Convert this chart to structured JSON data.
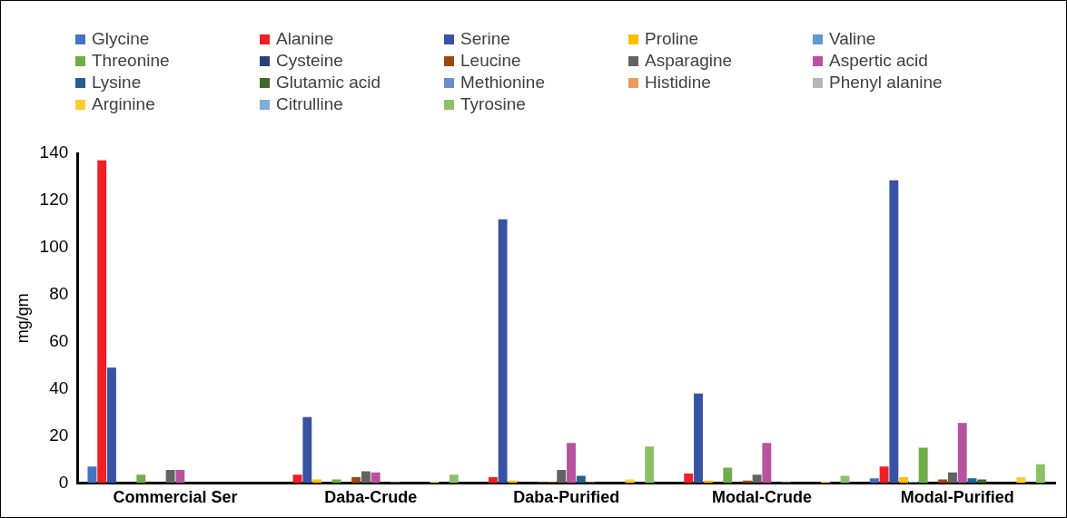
{
  "chart_data": {
    "type": "bar",
    "ylabel": "mg/gm",
    "categories": [
      "Commercial Ser",
      "Daba-Crude",
      "Daba-Purified",
      "Modal-Crude",
      "Modal-Purified"
    ],
    "ylim": [
      0,
      140
    ],
    "yticks": [
      0,
      20,
      40,
      60,
      80,
      100,
      120,
      140
    ],
    "grid": false,
    "legend": "top",
    "series": [
      {
        "name": "Glycine",
        "color": "#4472c4",
        "values": [
          7,
          0,
          0,
          0,
          2
        ]
      },
      {
        "name": "Alanine",
        "color": "#ee2024",
        "values": [
          137,
          3.5,
          2.5,
          4,
          7
        ]
      },
      {
        "name": "Serine",
        "color": "#3953a4",
        "values": [
          49,
          28,
          112,
          38,
          128.5
        ]
      },
      {
        "name": "Proline",
        "color": "#ffc000",
        "values": [
          0,
          1.5,
          1,
          1,
          2.5
        ]
      },
      {
        "name": "Valine",
        "color": "#5b9bd5",
        "values": [
          0,
          0,
          0,
          0,
          0.5
        ]
      },
      {
        "name": "Threonine",
        "color": "#70ad47",
        "values": [
          3.5,
          1.5,
          0,
          6.5,
          15
        ]
      },
      {
        "name": "Cysteine",
        "color": "#264478",
        "values": [
          0,
          0,
          0.5,
          0,
          0
        ]
      },
      {
        "name": "Leucine",
        "color": "#9e480e",
        "values": [
          0,
          2.5,
          0.5,
          1,
          1.5
        ]
      },
      {
        "name": "Asparagine",
        "color": "#636363",
        "values": [
          5.5,
          5,
          5.5,
          3.5,
          4.5
        ]
      },
      {
        "name": "Aspertic acid",
        "color": "#b9529f",
        "values": [
          5.5,
          4.5,
          17,
          17,
          25.5
        ]
      },
      {
        "name": "Lysine",
        "color": "#255e91",
        "values": [
          0,
          0,
          3,
          0,
          2
        ]
      },
      {
        "name": "Glutamic acid",
        "color": "#43682b",
        "values": [
          0,
          0.5,
          0.5,
          0.5,
          1.5
        ]
      },
      {
        "name": "Methionine",
        "color": "#698ed0",
        "values": [
          0,
          0,
          0,
          0,
          0
        ]
      },
      {
        "name": "Histidine",
        "color": "#f1975a",
        "values": [
          0,
          0,
          0,
          0,
          0
        ]
      },
      {
        "name": "Phenyl alanine",
        "color": "#b7b7b7",
        "values": [
          0,
          0,
          0,
          0,
          0
        ]
      },
      {
        "name": "Arginine",
        "color": "#ffcd33",
        "values": [
          0,
          0.5,
          1.5,
          0.5,
          2.5
        ]
      },
      {
        "name": "Citrulline",
        "color": "#7cafdd",
        "values": [
          0,
          0,
          0,
          0,
          0
        ]
      },
      {
        "name": "Tyrosine",
        "color": "#8cc168",
        "values": [
          0,
          3.5,
          15.5,
          3,
          8
        ]
      }
    ]
  }
}
